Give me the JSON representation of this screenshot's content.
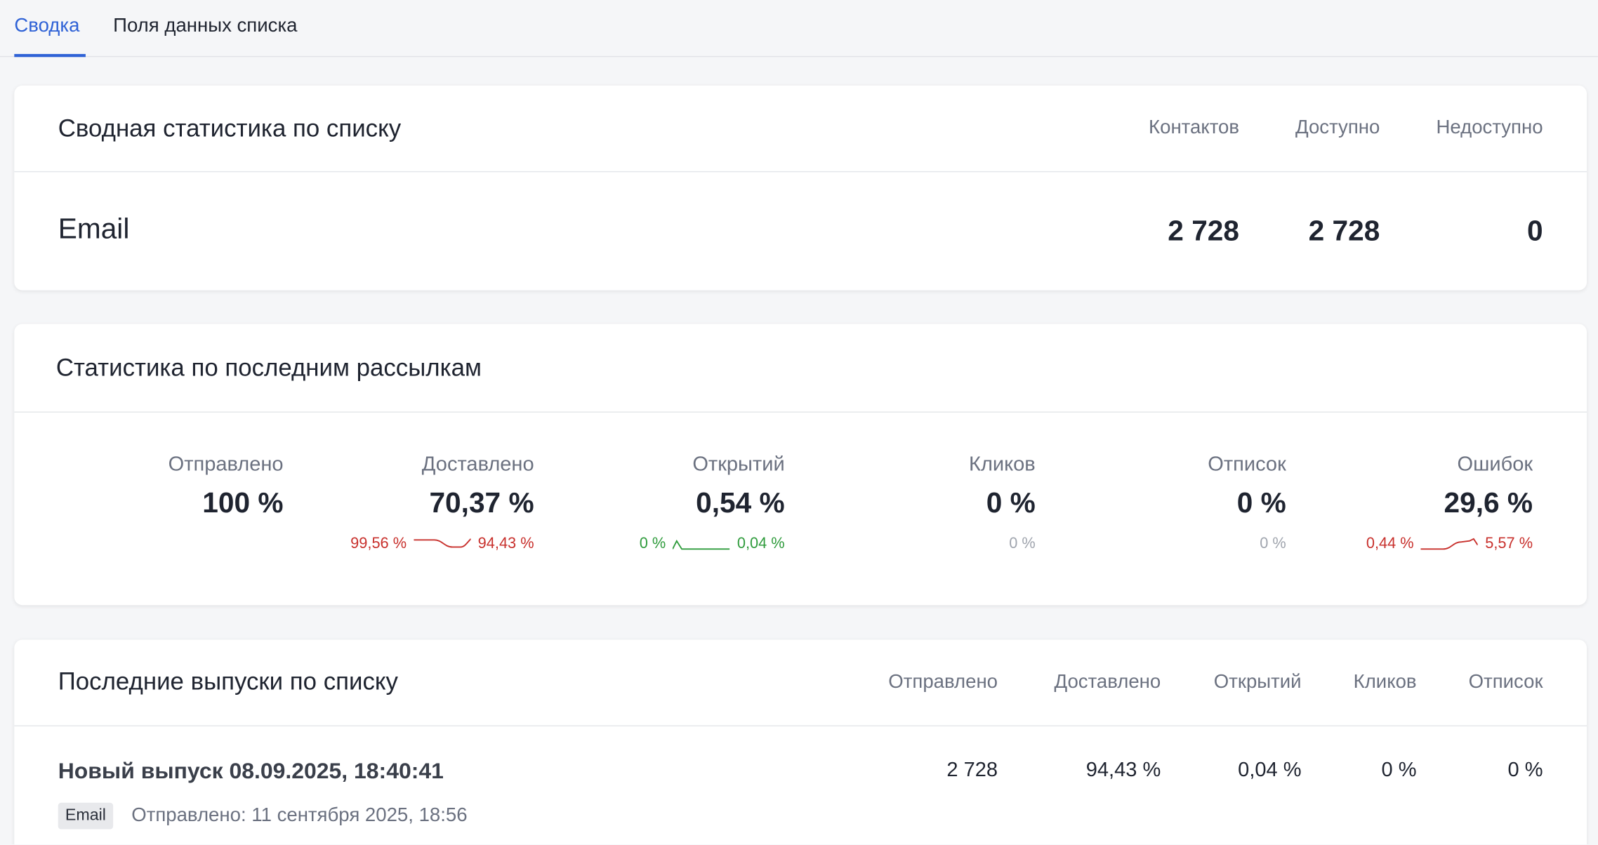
{
  "tabs": [
    "Сводка",
    "Поля данных списка"
  ],
  "summary": {
    "title": "Сводная статистика по списку",
    "columns": [
      "Контактов",
      "Доступно",
      "Недоступно"
    ],
    "rows": [
      {
        "label": "Email",
        "values": [
          "2 728",
          "2 728",
          "0"
        ]
      }
    ]
  },
  "mailing_stats": {
    "title": "Статистика по последним рассылкам",
    "items": [
      {
        "label": "Отправлено",
        "value": "100 %"
      },
      {
        "label": "Доставлено",
        "value": "70,37 %",
        "from": "99,56 %",
        "to": "94,43 %"
      },
      {
        "label": "Открытий",
        "value": "0,54 %",
        "from": "0 %",
        "to": "0,04 %"
      },
      {
        "label": "Кликов",
        "value": "0 %",
        "note": "0 %"
      },
      {
        "label": "Отписок",
        "value": "0 %",
        "note": "0 %"
      },
      {
        "label": "Ошибок",
        "value": "29,6 %",
        "from": "0,44 %",
        "to": "5,57 %"
      }
    ]
  },
  "issues": {
    "title": "Последние выпуски по списку",
    "columns": [
      "Отправлено",
      "Доставлено",
      "Открытий",
      "Кликов",
      "Отписок"
    ],
    "rows": [
      {
        "name": "Новый выпуск 08.09.2025, 18:40:41",
        "badge": "Email",
        "sent_at": "Отправлено: 11 сентября 2025, 18:56",
        "values": [
          "2 728",
          "94,43 %",
          "0,04 %",
          "0 %",
          "0 %"
        ]
      }
    ]
  }
}
